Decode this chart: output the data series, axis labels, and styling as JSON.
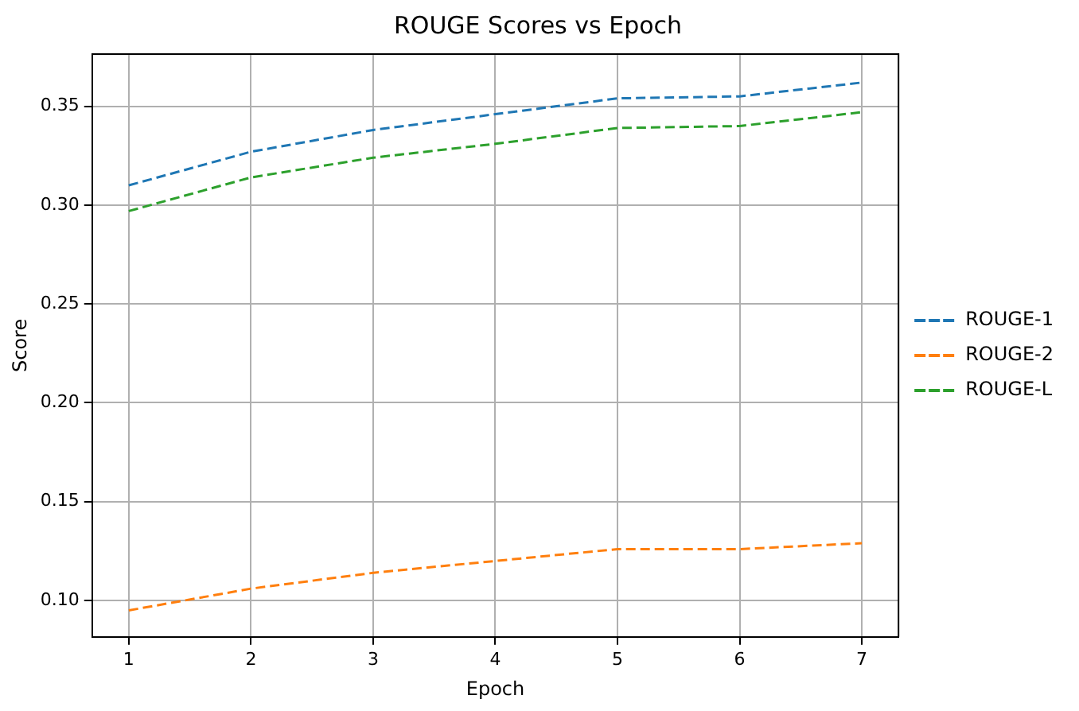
{
  "chart_data": {
    "type": "line",
    "title": "ROUGE Scores vs Epoch",
    "xlabel": "Epoch",
    "ylabel": "Score",
    "x": [
      1,
      2,
      3,
      4,
      5,
      6,
      7
    ],
    "series": [
      {
        "name": "ROUGE-1",
        "color": "#1f77b4",
        "values": [
          0.31,
          0.327,
          0.338,
          0.346,
          0.354,
          0.355,
          0.362
        ]
      },
      {
        "name": "ROUGE-2",
        "color": "#ff7f0e",
        "values": [
          0.095,
          0.106,
          0.114,
          0.12,
          0.126,
          0.126,
          0.129
        ]
      },
      {
        "name": "ROUGE-L",
        "color": "#2ca02c",
        "values": [
          0.297,
          0.314,
          0.324,
          0.331,
          0.339,
          0.34,
          0.347
        ]
      }
    ],
    "xlim": [
      0.7,
      7.3
    ],
    "xticks": [
      1,
      2,
      3,
      4,
      5,
      6,
      7
    ],
    "ylim": [
      0.0816,
      0.3764
    ],
    "yticks": [
      {
        "value": 0.1,
        "label": "0.10"
      },
      {
        "value": 0.15,
        "label": "0.15"
      },
      {
        "value": 0.2,
        "label": "0.20"
      },
      {
        "value": 0.25,
        "label": "0.25"
      },
      {
        "value": 0.3,
        "label": "0.30"
      },
      {
        "value": 0.35,
        "label": "0.35"
      }
    ],
    "grid": true,
    "legend": "right",
    "line_style": "dashed",
    "marker": "none"
  }
}
